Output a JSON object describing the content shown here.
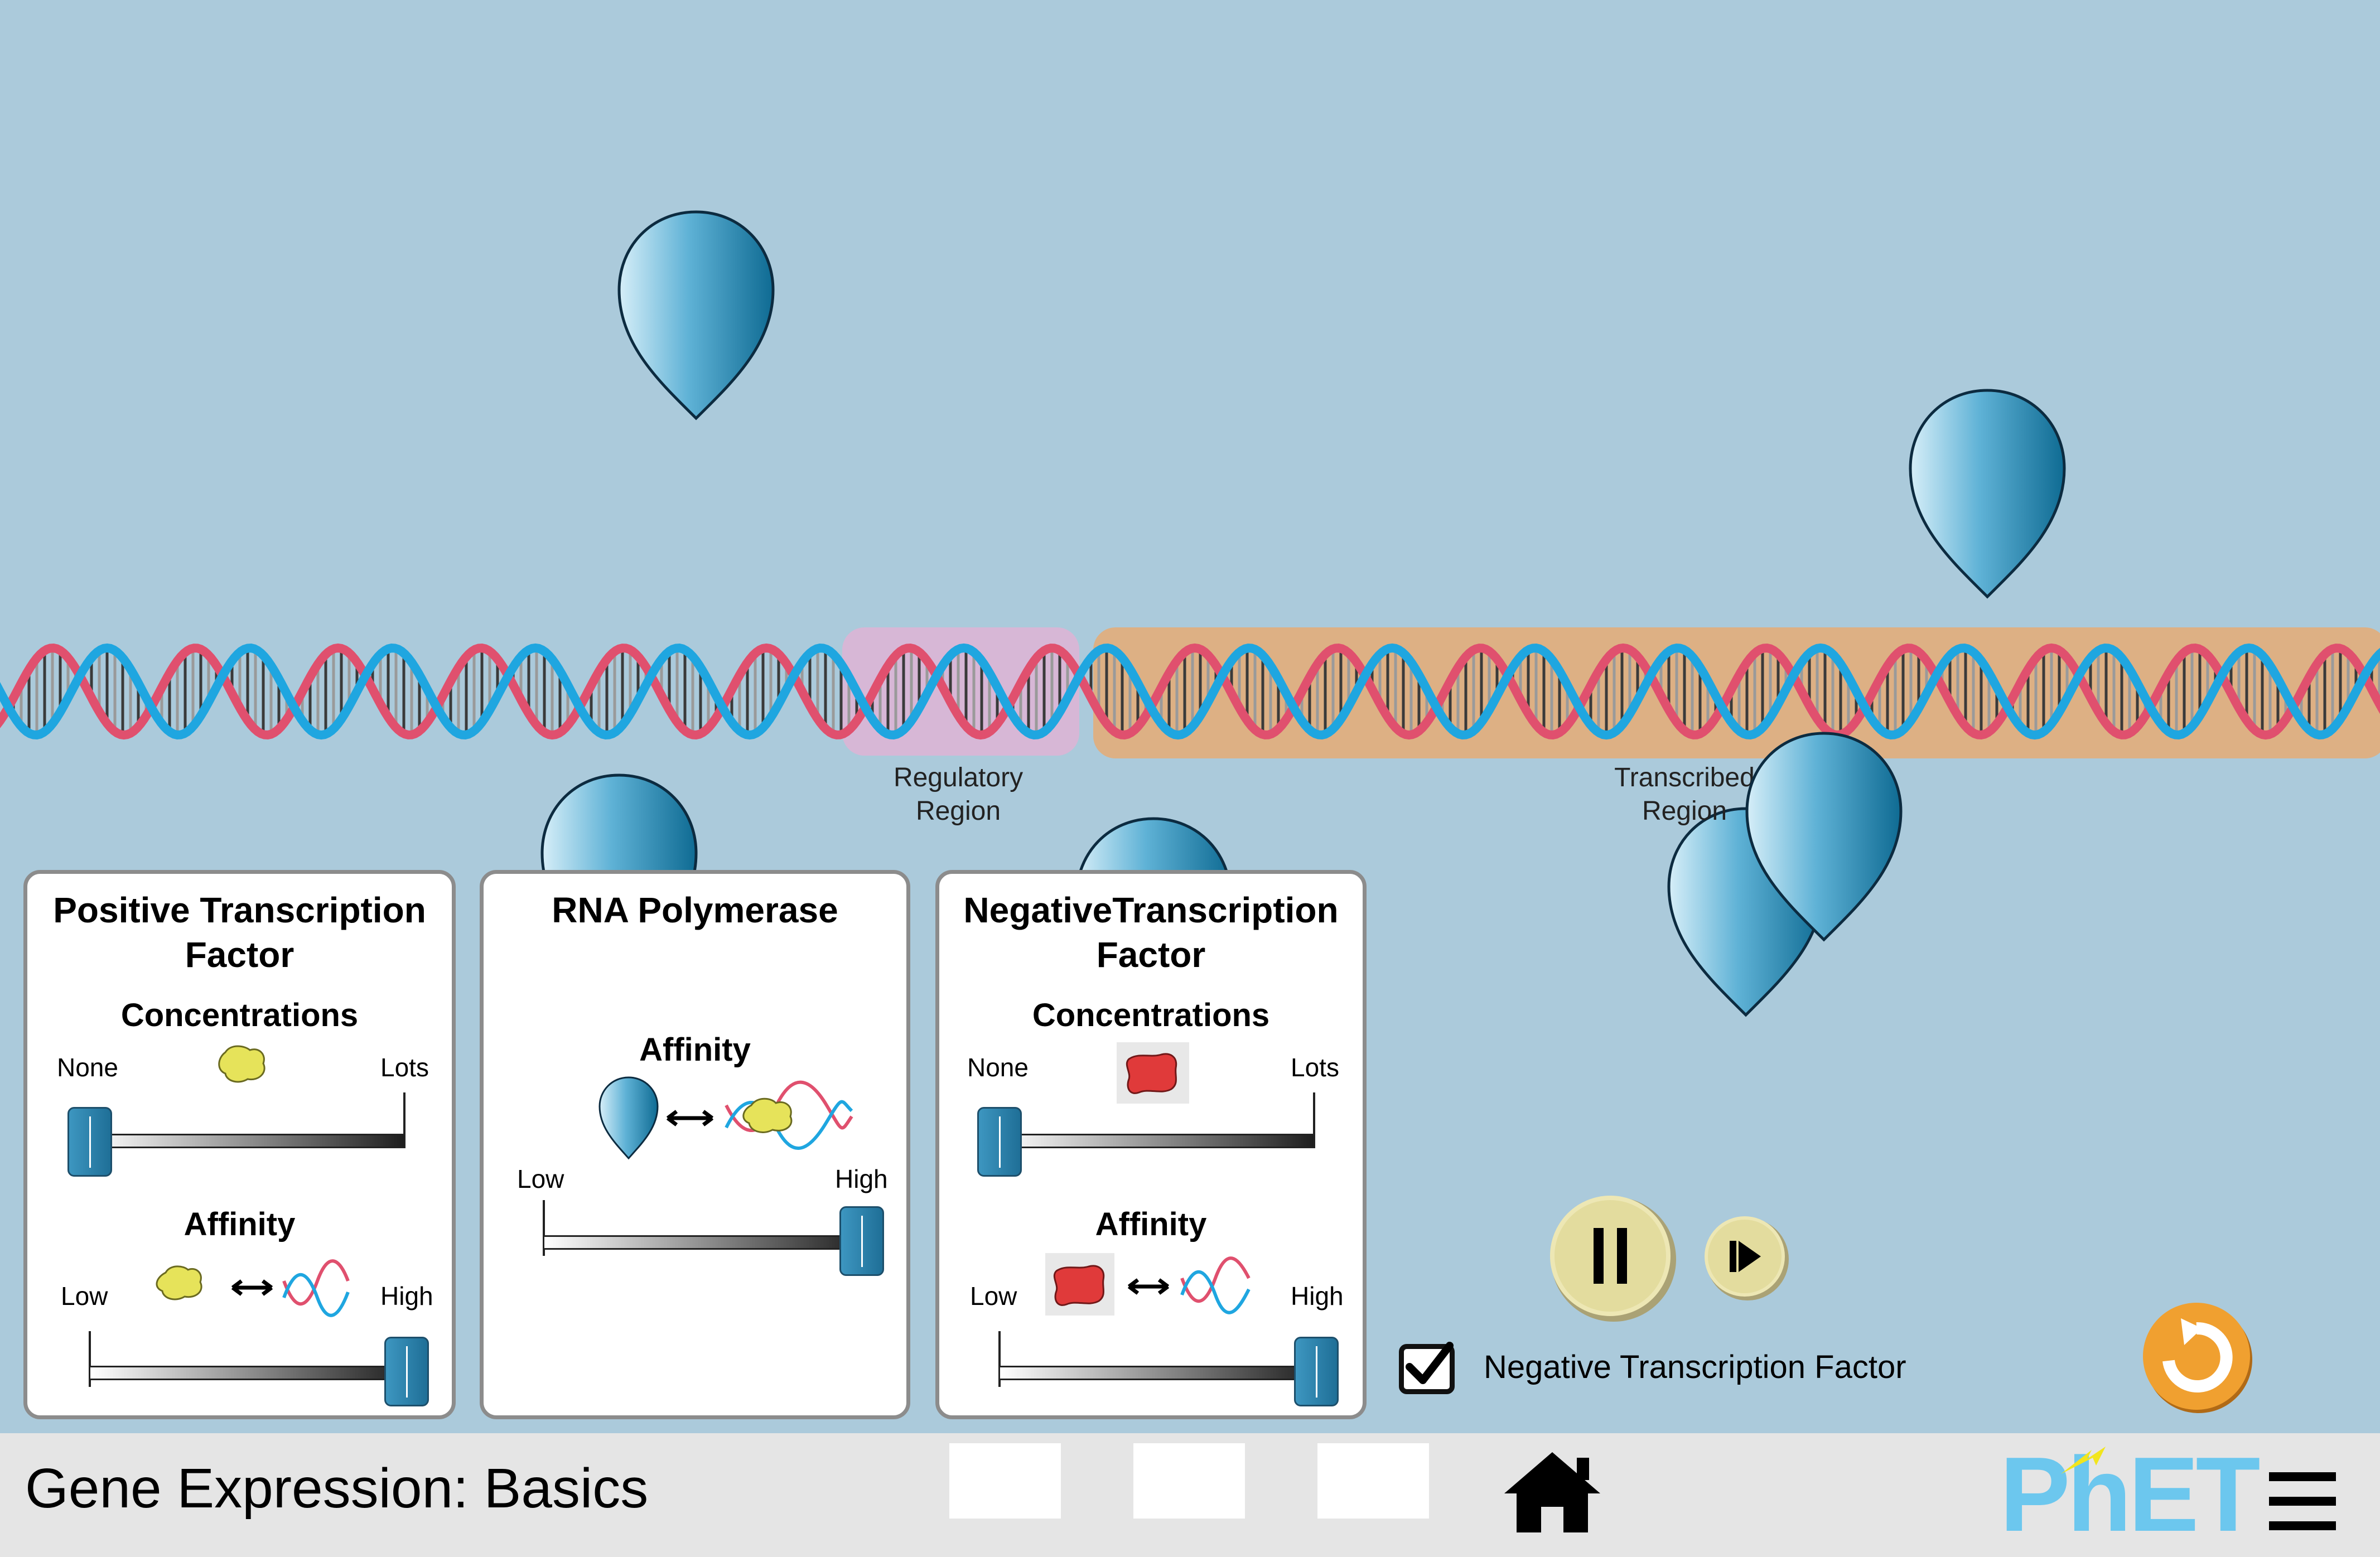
{
  "sim": {
    "regions": {
      "regulatory_line1": "Regulatory",
      "regulatory_line2": "Region",
      "transcribed_line1": "Transcribed",
      "transcribed_line2": "Region"
    }
  },
  "panels": {
    "positive": {
      "title_line1": "Positive Transcription",
      "title_line2": "Factor",
      "concentrations_label": "Concentrations",
      "conc_min": "None",
      "conc_max": "Lots",
      "concentration_level": 0.0,
      "affinity_label": "Affinity",
      "aff_min": "Low",
      "aff_max": "High",
      "affinity_level": 1.0
    },
    "polymerase": {
      "title": "RNA Polymerase",
      "affinity_label": "Affinity",
      "aff_min": "Low",
      "aff_max": "High",
      "affinity_level": 1.0
    },
    "negative": {
      "title_line1": "NegativeTranscription",
      "title_line2": "Factor",
      "concentrations_label": "Concentrations",
      "conc_min": "None",
      "conc_max": "Lots",
      "concentration_level": 0.0,
      "affinity_label": "Affinity",
      "aff_min": "Low",
      "aff_max": "High",
      "affinity_level": 1.0
    }
  },
  "controls": {
    "negative_factor_checkbox_label": "Negative Transcription Factor",
    "negative_factor_checked": true,
    "play_state": "playing"
  },
  "navbar": {
    "sim_title": "Gene Expression: Basics",
    "logo_text": "PhET"
  },
  "colors": {
    "background": "#abcadb",
    "regulatory_region": "#d7b7d6",
    "transcribed_region": "#ddb084",
    "dna_strand_blue": "#1fa6e0",
    "dna_strand_red": "#e0506e",
    "polymerase": "#2b86b0",
    "reset_orange": "#f0a030"
  }
}
